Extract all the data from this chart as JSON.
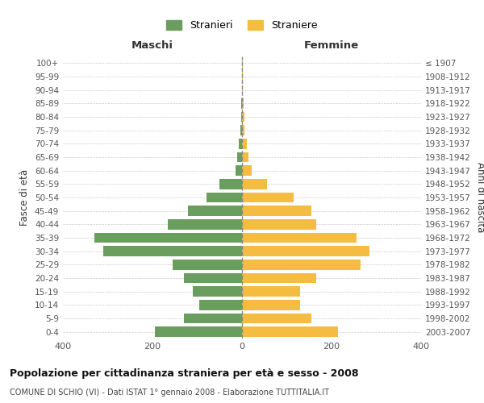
{
  "age_groups": [
    "0-4",
    "5-9",
    "10-14",
    "15-19",
    "20-24",
    "25-29",
    "30-34",
    "35-39",
    "40-44",
    "45-49",
    "50-54",
    "55-59",
    "60-64",
    "65-69",
    "70-74",
    "75-79",
    "80-84",
    "85-89",
    "90-94",
    "95-99",
    "100+"
  ],
  "birth_years": [
    "2003-2007",
    "1998-2002",
    "1993-1997",
    "1988-1992",
    "1983-1987",
    "1978-1982",
    "1973-1977",
    "1968-1972",
    "1963-1967",
    "1958-1962",
    "1953-1957",
    "1948-1952",
    "1943-1947",
    "1938-1942",
    "1933-1937",
    "1928-1932",
    "1923-1927",
    "1918-1922",
    "1913-1917",
    "1908-1912",
    "≤ 1907"
  ],
  "maschi": [
    195,
    130,
    95,
    110,
    130,
    155,
    310,
    330,
    165,
    120,
    80,
    50,
    15,
    10,
    8,
    3,
    2,
    1,
    0,
    0,
    0
  ],
  "femmine": [
    215,
    155,
    130,
    130,
    165,
    265,
    285,
    255,
    165,
    155,
    115,
    55,
    22,
    15,
    10,
    5,
    5,
    3,
    2,
    1,
    1
  ],
  "maschi_color": "#6a9e5e",
  "femmine_color": "#f5bc42",
  "background_color": "#ffffff",
  "grid_color": "#cccccc",
  "center_line_color": "#888888",
  "title": "Popolazione per cittadinanza straniera per età e sesso - 2008",
  "subtitle": "COMUNE DI SCHIO (VI) - Dati ISTAT 1° gennaio 2008 - Elaborazione TUTTITALIA.IT",
  "xlabel_left": "Maschi",
  "xlabel_right": "Femmine",
  "ylabel_left": "Fasce di età",
  "ylabel_right": "Anni di nascita",
  "legend_maschi": "Stranieri",
  "legend_femmine": "Straniere",
  "xlim": 400,
  "bar_height": 0.75
}
